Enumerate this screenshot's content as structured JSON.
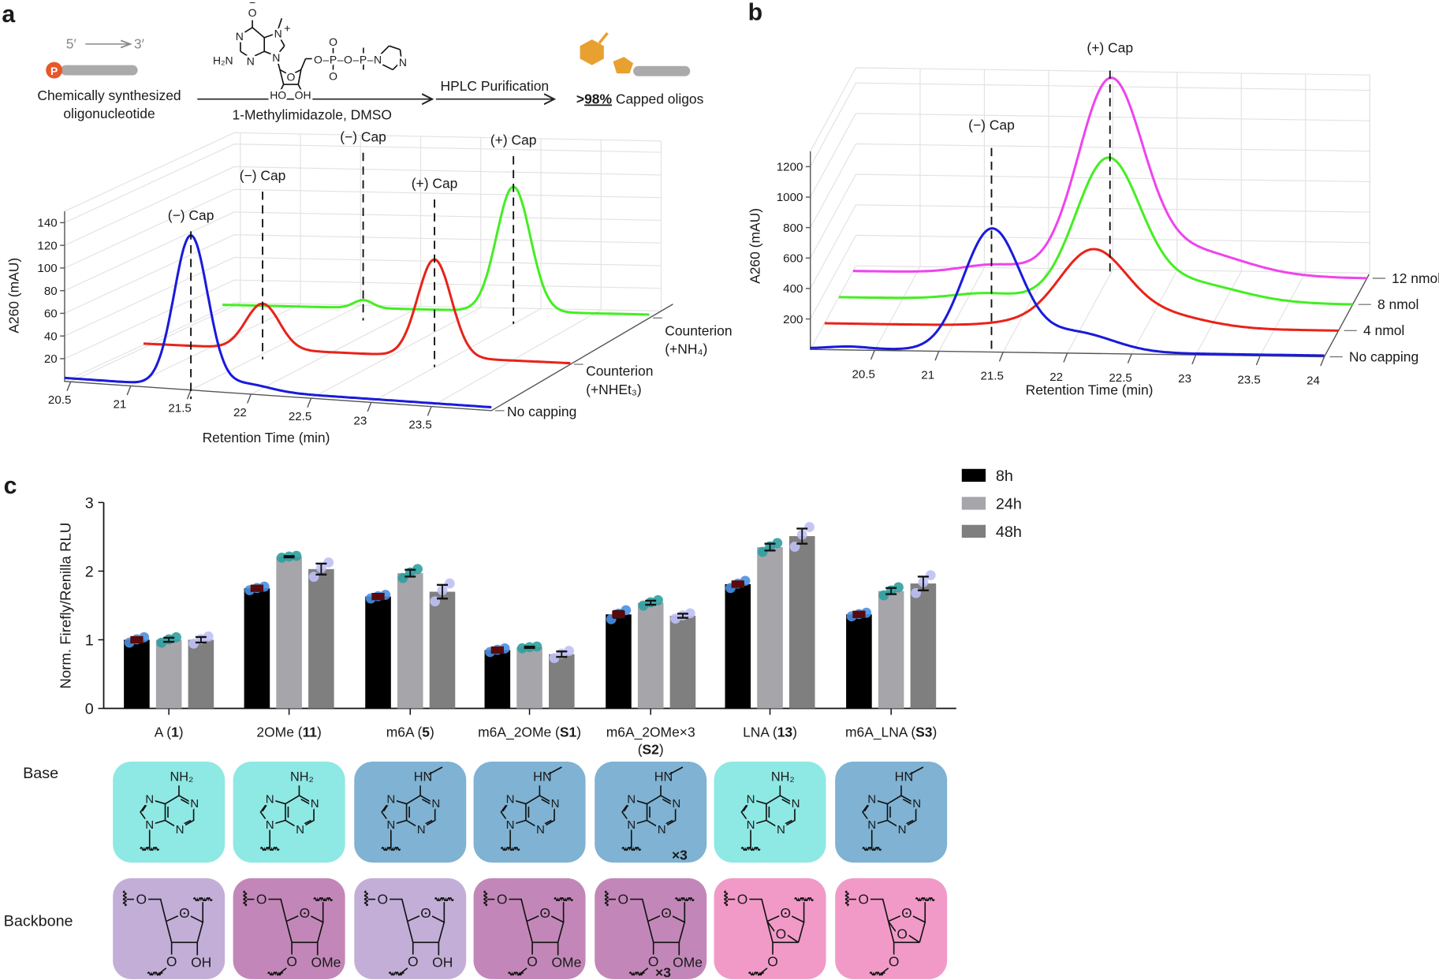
{
  "panel_labels": {
    "a": "a",
    "b": "b",
    "c": "c"
  },
  "scheme": {
    "five_prime": "5′",
    "three_prime": "3′",
    "phosphate_label": "P",
    "reactant_lines": [
      "Chemically synthesized",
      "oligonucleotide"
    ],
    "reagent_conditions": "1-Methylimidazole, DMSO",
    "purification": "HPLC Purification",
    "product": [
      {
        "text": ">",
        "bold": true
      },
      {
        "text": "98%",
        "bold": true,
        "underline": true
      },
      {
        "text": " Capped oligos"
      }
    ],
    "reagent_atoms": {
      "oxide": "O",
      "charge_minus": "−",
      "n7": "N",
      "plus": "+",
      "n1": "N",
      "h2n": "H₂N",
      "n3": "N",
      "n9": "N",
      "o4": "O",
      "ho": "HO",
      "oh": "OH",
      "chain": "O–P–O–P–N",
      "p_oxo": "O",
      "p_oxide": "O",
      "imid_n": "N"
    },
    "colors": {
      "phosphate": "#e8572a",
      "oligo": "#aaaaaa",
      "cap": "#e8a030"
    }
  },
  "chart_data": [
    {
      "panel": "a",
      "type": "line",
      "style": "3d-waterfall",
      "xlabel": "Retention Time (min)",
      "ylabel": "A260 (mAU)",
      "x_ticks": [
        20.5,
        21,
        21.5,
        22,
        22.5,
        23,
        23.5
      ],
      "y_ticks": [
        20,
        40,
        60,
        80,
        100,
        120,
        140
      ],
      "xlim": [
        20.45,
        24.0
      ],
      "ylim": [
        0,
        150
      ],
      "grid": true,
      "series": [
        {
          "name_lines": [
            "No capping"
          ],
          "color": "#1a1adb",
          "baseline": 3,
          "peaks": [
            {
              "t": 21.5,
              "height": 133,
              "width": 0.14
            },
            {
              "t": 21.95,
              "height": 6,
              "width": 0.2
            }
          ]
        },
        {
          "name_lines": [
            "Counterion",
            "(+NHEt₃)"
          ],
          "color": "#e8231a",
          "baseline": 1,
          "peaks": [
            {
              "t": 21.44,
              "height": 40,
              "width": 0.14
            },
            {
              "t": 22.87,
              "height": 86,
              "width": 0.14
            }
          ]
        },
        {
          "name_lines": [
            "Counterion",
            "(+NH₄)"
          ],
          "color": "#44ee22",
          "baseline": 3,
          "peaks": [
            {
              "t": 21.62,
              "height": 7,
              "width": 0.08
            },
            {
              "t": 22.87,
              "height": 110,
              "width": 0.14
            }
          ]
        }
      ],
      "annotations": [
        {
          "label": "(−) Cap",
          "t": 21.5,
          "series": 0
        },
        {
          "label": "(−) Cap",
          "t": 21.44,
          "series": 1
        },
        {
          "label": "(−) Cap",
          "t": 21.62,
          "series": 2
        },
        {
          "label": "(+) Cap",
          "t": 22.87,
          "series": 1
        },
        {
          "label": "(+) Cap",
          "t": 22.87,
          "series": 2
        }
      ]
    },
    {
      "panel": "b",
      "type": "line",
      "style": "3d-waterfall",
      "xlabel": "Retention Time (min)",
      "ylabel": "A260 (mAU)",
      "x_ticks": [
        20.5,
        21,
        21.5,
        22,
        22.5,
        23,
        23.5,
        24
      ],
      "y_ticks": [
        200,
        400,
        600,
        800,
        1000,
        1200
      ],
      "xlim": [
        20.0,
        24.0
      ],
      "ylim": [
        0,
        1300
      ],
      "grid": true,
      "series": [
        {
          "name_lines": [
            "No capping"
          ],
          "color": "#1a1adb",
          "baseline": 8,
          "peaks": [
            {
              "t": 20.3,
              "height": 15,
              "width": 0.15
            },
            {
              "t": 21.41,
              "height": 790,
              "width": 0.22
            },
            {
              "t": 22.05,
              "height": 130,
              "width": 0.3
            }
          ]
        },
        {
          "name_lines": [
            "4 nmol"
          ],
          "color": "#e8231a",
          "baseline": 0,
          "peaks": [
            {
              "t": 21.5,
              "height": 20,
              "width": 0.25
            },
            {
              "t": 22.08,
              "height": 480,
              "width": 0.26
            },
            {
              "t": 22.6,
              "height": 90,
              "width": 0.35
            }
          ]
        },
        {
          "name_lines": [
            "8 nmol"
          ],
          "color": "#44ee22",
          "baseline": 0,
          "peaks": [
            {
              "t": 21.15,
              "height": 40,
              "width": 0.25
            },
            {
              "t": 22.09,
              "height": 900,
              "width": 0.25
            },
            {
              "t": 22.7,
              "height": 130,
              "width": 0.4
            }
          ]
        },
        {
          "name_lines": [
            "12 nmol"
          ],
          "color": "#ee44ee",
          "baseline": 0,
          "peaks": [
            {
              "t": 21.1,
              "height": 55,
              "width": 0.25
            },
            {
              "t": 22.0,
              "height": 1230,
              "width": 0.25
            },
            {
              "t": 22.6,
              "height": 170,
              "width": 0.42
            }
          ]
        }
      ],
      "annotations": [
        {
          "label": "(−) Cap",
          "t": 21.41,
          "series": 0
        },
        {
          "label": "(+) Cap",
          "t": 22.0,
          "series": 3
        }
      ]
    },
    {
      "panel": "c",
      "type": "bar",
      "ylabel": "Norm. Firefly/Renilla RLU",
      "ylim": [
        0,
        3
      ],
      "y_ticks": [
        0,
        1,
        2,
        3
      ],
      "legend": "top-right",
      "categories": [
        {
          "lines": [
            [
              {
                "text": "A ("
              },
              {
                "text": "1",
                "bold": true
              },
              {
                "text": ")"
              }
            ]
          ]
        },
        {
          "lines": [
            [
              {
                "text": "2OMe ("
              },
              {
                "text": "11",
                "bold": true
              },
              {
                "text": ")"
              }
            ]
          ]
        },
        {
          "lines": [
            [
              {
                "text": "m6A ("
              },
              {
                "text": "5",
                "bold": true
              },
              {
                "text": ")"
              }
            ]
          ]
        },
        {
          "lines": [
            [
              {
                "text": "m6A_2OMe ("
              },
              {
                "text": "S1",
                "bold": true
              },
              {
                "text": ")"
              }
            ]
          ]
        },
        {
          "lines": [
            [
              {
                "text": "m6A_2OMe×3"
              }
            ],
            [
              {
                "text": "("
              },
              {
                "text": "S2",
                "bold": true
              },
              {
                "text": ")"
              }
            ]
          ]
        },
        {
          "lines": [
            [
              {
                "text": "LNA ("
              },
              {
                "text": "13",
                "bold": true
              },
              {
                "text": ")"
              }
            ]
          ]
        },
        {
          "lines": [
            [
              {
                "text": "m6A_LNA ("
              },
              {
                "text": "S3",
                "bold": true
              },
              {
                "text": ")"
              }
            ]
          ]
        }
      ],
      "series": [
        {
          "name": "8h",
          "color": "#000000",
          "dot_color": "#4a90e2",
          "mean_color": "#5a0a0a",
          "values": [
            1.0,
            1.75,
            1.63,
            0.85,
            1.37,
            1.81,
            1.37
          ],
          "errors": [
            0.03,
            0.02,
            0.02,
            0.02,
            0.05,
            0.04,
            0.02
          ]
        },
        {
          "name": "24h",
          "color": "#a6a6aa",
          "dot_color": "#2fa0a0",
          "values": [
            1.0,
            2.21,
            1.97,
            0.89,
            1.54,
            2.35,
            1.71
          ],
          "errors": [
            0.03,
            0.01,
            0.05,
            0.01,
            0.03,
            0.05,
            0.045
          ]
        },
        {
          "name": "48h",
          "color": "#7f7f7f",
          "dot_color": "#c0c0f5",
          "values": [
            1.0,
            2.03,
            1.7,
            0.79,
            1.35,
            2.51,
            1.82
          ],
          "errors": [
            0.04,
            0.08,
            0.1,
            0.04,
            0.03,
            0.11,
            0.1
          ]
        }
      ]
    }
  ],
  "structures": {
    "row_labels": {
      "base": "Base",
      "backbone": "Backbone"
    },
    "atoms": {
      "n": "N",
      "o": "O",
      "nh2": "NH₂",
      "hn": "HN",
      "oh": "OH",
      "ome": "OMe",
      "times3": "×3"
    },
    "colors": {
      "adenine": "#8ee8e4",
      "m6a": "#7fb2d3",
      "ribose": "#c3aed8",
      "ome": "#c287b8",
      "lna": "#f19ac8"
    },
    "base": [
      {
        "type": "adenine",
        "substituent": "nh2"
      },
      {
        "type": "adenine",
        "substituent": "nh2"
      },
      {
        "type": "m6a",
        "substituent": "hn"
      },
      {
        "type": "m6a",
        "substituent": "hn"
      },
      {
        "type": "m6a",
        "substituent": "hn",
        "multiplier": "×3"
      },
      {
        "type": "adenine",
        "substituent": "nh2"
      },
      {
        "type": "m6a",
        "substituent": "hn"
      }
    ],
    "backbone": [
      {
        "type": "ribose",
        "substituent": "OH"
      },
      {
        "type": "ome",
        "substituent": "OMe"
      },
      {
        "type": "ribose",
        "substituent": "OH"
      },
      {
        "type": "ome",
        "substituent": "OMe"
      },
      {
        "type": "ome",
        "substituent": "OMe",
        "multiplier": "×3"
      },
      {
        "type": "lna",
        "substituent": ""
      },
      {
        "type": "lna",
        "substituent": ""
      }
    ]
  }
}
